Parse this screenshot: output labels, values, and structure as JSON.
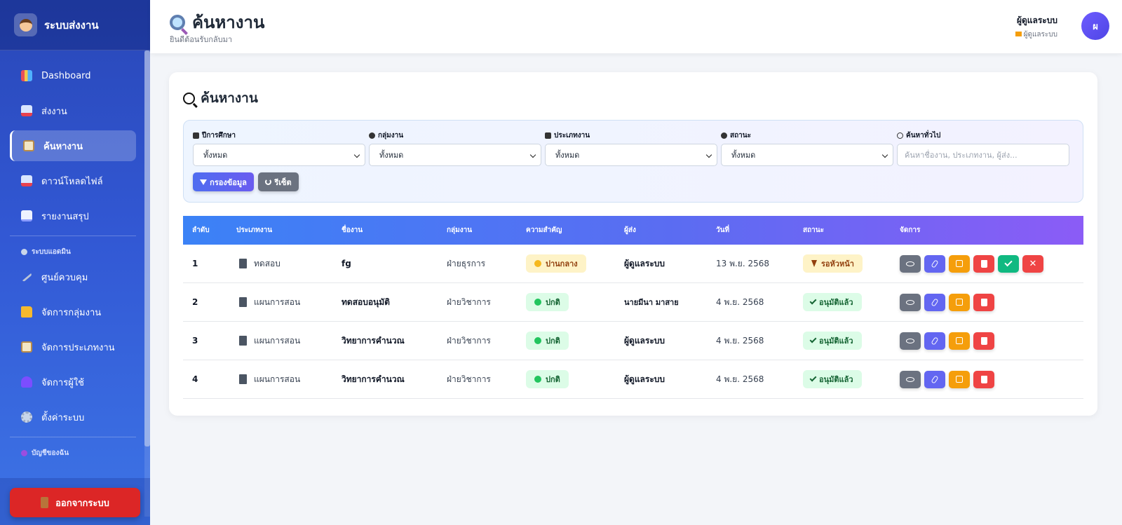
{
  "sidebar": {
    "brand": "ระบบส่งงาน",
    "items": [
      {
        "label": "Dashboard",
        "icon": "chart-icon"
      },
      {
        "label": "ส่งงาน",
        "icon": "inbox-icon"
      },
      {
        "label": "ค้นหางาน",
        "icon": "clipboard-icon",
        "active": true
      },
      {
        "label": "ดาวน์โหลดไฟล์",
        "icon": "inbox-icon"
      },
      {
        "label": "รายงานสรุป",
        "icon": "trend-icon"
      }
    ],
    "admin_section": "ระบบแอดมิน",
    "admin_items": [
      {
        "label": "ศูนย์ควบคุม",
        "icon": "wrench-icon"
      },
      {
        "label": "จัดการกลุ่มงาน",
        "icon": "folder-icon"
      },
      {
        "label": "จัดการประเภทงาน",
        "icon": "clipboard-icon"
      },
      {
        "label": "จัดการผู้ใช้",
        "icon": "users-icon"
      },
      {
        "label": "ตั้งค่าระบบ",
        "icon": "gear-icon"
      }
    ],
    "account_section": "บัญชีของฉัน",
    "logout": "ออกจากระบบ"
  },
  "header": {
    "title": "ค้นหางาน",
    "subtitle": "ยินดีต้อนรับกลับมา",
    "user_name": "ผู้ดูแลระบบ",
    "user_role": "ผู้ดูแลระบบ",
    "avatar_initial": "ผ"
  },
  "card": {
    "title": "ค้นหางาน",
    "filters": {
      "year": {
        "label": "ปีการศึกษา",
        "value": "ทั้งหมด"
      },
      "group": {
        "label": "กลุ่มงาน",
        "value": "ทั้งหมด"
      },
      "type": {
        "label": "ประเภทงาน",
        "value": "ทั้งหมด"
      },
      "status": {
        "label": "สถานะ",
        "value": "ทั้งหมด"
      },
      "search": {
        "label": "ค้นหาทั่วไป",
        "placeholder": "ค้นหาชื่องาน, ประเภทงาน, ผู้ส่ง..."
      }
    },
    "filter_button": "กรองข้อมูล",
    "reset_button": "รีเซ็ต"
  },
  "table": {
    "headers": [
      "ลำดับ",
      "ประเภทงาน",
      "ชื่องาน",
      "กลุ่มงาน",
      "ความสำคัญ",
      "ผู้ส่ง",
      "วันที่",
      "สถานะ",
      "จัดการ"
    ],
    "rows": [
      {
        "no": "1",
        "type": "ทดสอบ",
        "name": "fg",
        "group": "ฝ่ายธุรการ",
        "priority": "ปานกลาง",
        "sender": "ผู้ดูแลระบบ",
        "date": "13 พ.ย. 2568",
        "status": "รอหัวหน้า",
        "extra_actions": true
      },
      {
        "no": "2",
        "type": "แผนการสอน",
        "name": "ทดสอบอนุมัติ",
        "group": "ฝ่ายวิชาการ",
        "priority": "ปกติ",
        "sender": "นายมีนา มาสาย",
        "date": "4 พ.ย. 2568",
        "status": "อนุมัติแล้ว",
        "extra_actions": false
      },
      {
        "no": "3",
        "type": "แผนการสอน",
        "name": "วิทยาการคำนวณ",
        "group": "ฝ่ายวิชาการ",
        "priority": "ปกติ",
        "sender": "ผู้ดูแลระบบ",
        "date": "4 พ.ย. 2568",
        "status": "อนุมัติแล้ว",
        "extra_actions": false
      },
      {
        "no": "4",
        "type": "แผนการสอน",
        "name": "วิทยาการคำนวณ",
        "group": "ฝ่ายวิชาการ",
        "priority": "ปกติ",
        "sender": "ผู้ดูแลระบบ",
        "date": "4 พ.ย. 2568",
        "status": "อนุมัติแล้ว",
        "extra_actions": false
      }
    ]
  },
  "colors": {
    "primary": "#3b82f6",
    "accent": "#8b5cf6",
    "danger": "#ef4444",
    "warning": "#f59e0b",
    "success": "#10b981"
  }
}
